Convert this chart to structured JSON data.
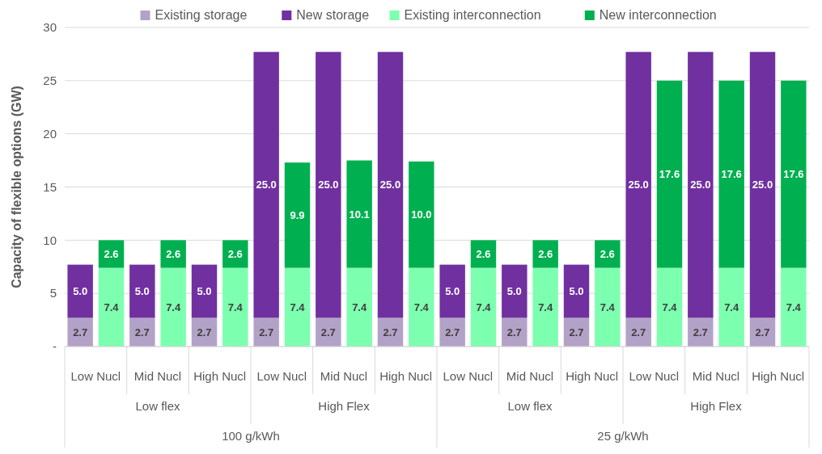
{
  "chart_data": {
    "type": "bar",
    "stacked": true,
    "ylabel": "Capacity of flexible options (GW)",
    "categories": [
      "Low Nucl",
      null,
      "Mid Nucl",
      null,
      "High Nucl",
      null,
      "Low Nucl",
      null,
      "Mid Nucl",
      null,
      "High Nucl",
      null,
      "Low Nucl",
      null,
      "Mid Nucl",
      null,
      "High Nucl",
      null,
      "Low Nucl",
      null,
      "Mid Nucl",
      null,
      "High Nucl",
      null
    ],
    "annotations": [
      "Low flex",
      "High Flex",
      "Low flex",
      "High Flex",
      "100 g/kWh",
      "25 g/kWh"
    ],
    "series": [
      {
        "name": "Existing storage",
        "color": "#b3a2c7",
        "values": [
          2.7,
          null,
          2.7,
          null,
          2.7,
          null,
          2.7,
          null,
          2.7,
          null,
          2.7,
          null,
          2.7,
          null,
          2.7,
          null,
          2.7,
          null,
          2.7,
          null,
          2.7,
          null,
          2.7,
          null
        ],
        "value_labels": [
          "2.7",
          null,
          "2.7",
          null,
          "2.7",
          null,
          "2.7",
          null,
          "2.7",
          null,
          "2.7",
          null,
          "2.7",
          null,
          "2.7",
          null,
          "2.7",
          null,
          "2.7",
          null,
          "2.7",
          null,
          "2.7",
          null
        ]
      },
      {
        "name": "New storage",
        "color": "#7030a0",
        "values": [
          5.0,
          null,
          5.0,
          null,
          5.0,
          null,
          25.0,
          null,
          25.0,
          null,
          25.0,
          null,
          5.0,
          null,
          5.0,
          null,
          5.0,
          null,
          25.0,
          null,
          25.0,
          null,
          25.0,
          null
        ],
        "value_labels": [
          "5.0",
          null,
          "5.0",
          null,
          "5.0",
          null,
          "25.0",
          null,
          "25.0",
          null,
          "25.0",
          null,
          "5.0",
          null,
          "5.0",
          null,
          "5.0",
          null,
          "25.0",
          null,
          "25.0",
          null,
          "25.0",
          null
        ]
      },
      {
        "name": "Existing interconnection",
        "color": "#7dffb0",
        "values": [
          null,
          7.4,
          null,
          7.4,
          null,
          7.4,
          null,
          7.4,
          null,
          7.4,
          null,
          7.4,
          null,
          7.4,
          null,
          7.4,
          null,
          7.4,
          null,
          7.4,
          null,
          7.4,
          null,
          7.4
        ],
        "value_labels": [
          null,
          "7.4",
          null,
          "7.4",
          null,
          "7.4",
          null,
          "7.4",
          null,
          "7.4",
          null,
          "7.4",
          null,
          "7.4",
          null,
          "7.4",
          null,
          "7.4",
          null,
          "7.4",
          null,
          "7.4",
          null,
          "7.4"
        ]
      },
      {
        "name": "New interconnection",
        "color": "#00b050",
        "values": [
          null,
          2.6,
          null,
          2.6,
          null,
          2.6,
          null,
          9.9,
          null,
          10.1,
          null,
          10.0,
          null,
          2.6,
          null,
          2.6,
          null,
          2.6,
          null,
          17.6,
          null,
          17.6,
          null,
          17.6
        ],
        "value_labels": [
          null,
          "2.6",
          null,
          "2.6",
          null,
          "2.6",
          null,
          "9.9",
          null,
          "10.1",
          null,
          "10.0",
          null,
          "2.6",
          null,
          "2.6",
          null,
          "2.6",
          null,
          "17.6",
          null,
          "17.6",
          null,
          "17.6"
        ]
      }
    ],
    "ylim": [
      0,
      30
    ],
    "yticks": [
      {
        "value": 0,
        "label": "-"
      },
      5,
      10,
      15,
      20,
      25,
      30
    ],
    "grid": "y",
    "legend": "top"
  }
}
